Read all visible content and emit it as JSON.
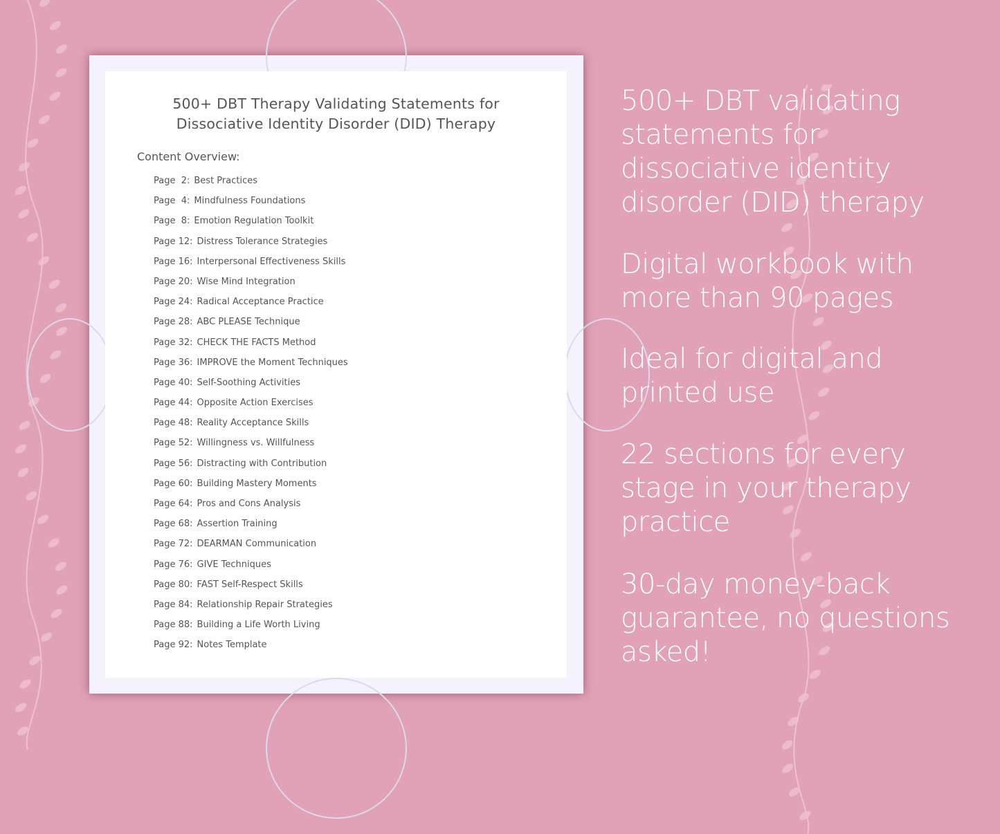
{
  "background_color": "#e1a1b6",
  "document": {
    "title_line1": "500+ DBT Therapy Validating Statements for",
    "title_line2": "Dissociative Identity Disorder (DID) Therapy",
    "overview_label": "Content Overview:",
    "toc": [
      {
        "page": "Page  2:",
        "label": "Best Practices"
      },
      {
        "page": "Page  4:",
        "label": "Mindfulness Foundations"
      },
      {
        "page": "Page  8:",
        "label": "Emotion Regulation Toolkit"
      },
      {
        "page": "Page 12:",
        "label": "Distress Tolerance Strategies"
      },
      {
        "page": "Page 16:",
        "label": "Interpersonal Effectiveness Skills"
      },
      {
        "page": "Page 20:",
        "label": "Wise Mind Integration"
      },
      {
        "page": "Page 24:",
        "label": "Radical Acceptance Practice"
      },
      {
        "page": "Page 28:",
        "label": "ABC PLEASE Technique"
      },
      {
        "page": "Page 32:",
        "label": "CHECK THE FACTS Method"
      },
      {
        "page": "Page 36:",
        "label": "IMPROVE the Moment Techniques"
      },
      {
        "page": "Page 40:",
        "label": "Self-Soothing Activities"
      },
      {
        "page": "Page 44:",
        "label": "Opposite Action Exercises"
      },
      {
        "page": "Page 48:",
        "label": "Reality Acceptance Skills"
      },
      {
        "page": "Page 52:",
        "label": "Willingness vs. Willfulness"
      },
      {
        "page": "Page 56:",
        "label": "Distracting with Contribution"
      },
      {
        "page": "Page 60:",
        "label": "Building Mastery Moments"
      },
      {
        "page": "Page 64:",
        "label": "Pros and Cons Analysis"
      },
      {
        "page": "Page 68:",
        "label": "Assertion Training"
      },
      {
        "page": "Page 72:",
        "label": "DEARMAN Communication"
      },
      {
        "page": "Page 76:",
        "label": "GIVE Techniques"
      },
      {
        "page": "Page 80:",
        "label": "FAST Self-Respect Skills"
      },
      {
        "page": "Page 84:",
        "label": "Relationship Repair Strategies"
      },
      {
        "page": "Page 88:",
        "label": "Building a Life Worth Living"
      },
      {
        "page": "Page 92:",
        "label": "Notes Template"
      }
    ]
  },
  "features": [
    "500+ DBT validating statements for dissociative identity disorder (DID) therapy",
    "Digital workbook with more than 90 pages",
    "Ideal for digital and printed use",
    "22 sections for every stage in your therapy practice",
    "30-day money-back guarantee, no questions asked!"
  ]
}
